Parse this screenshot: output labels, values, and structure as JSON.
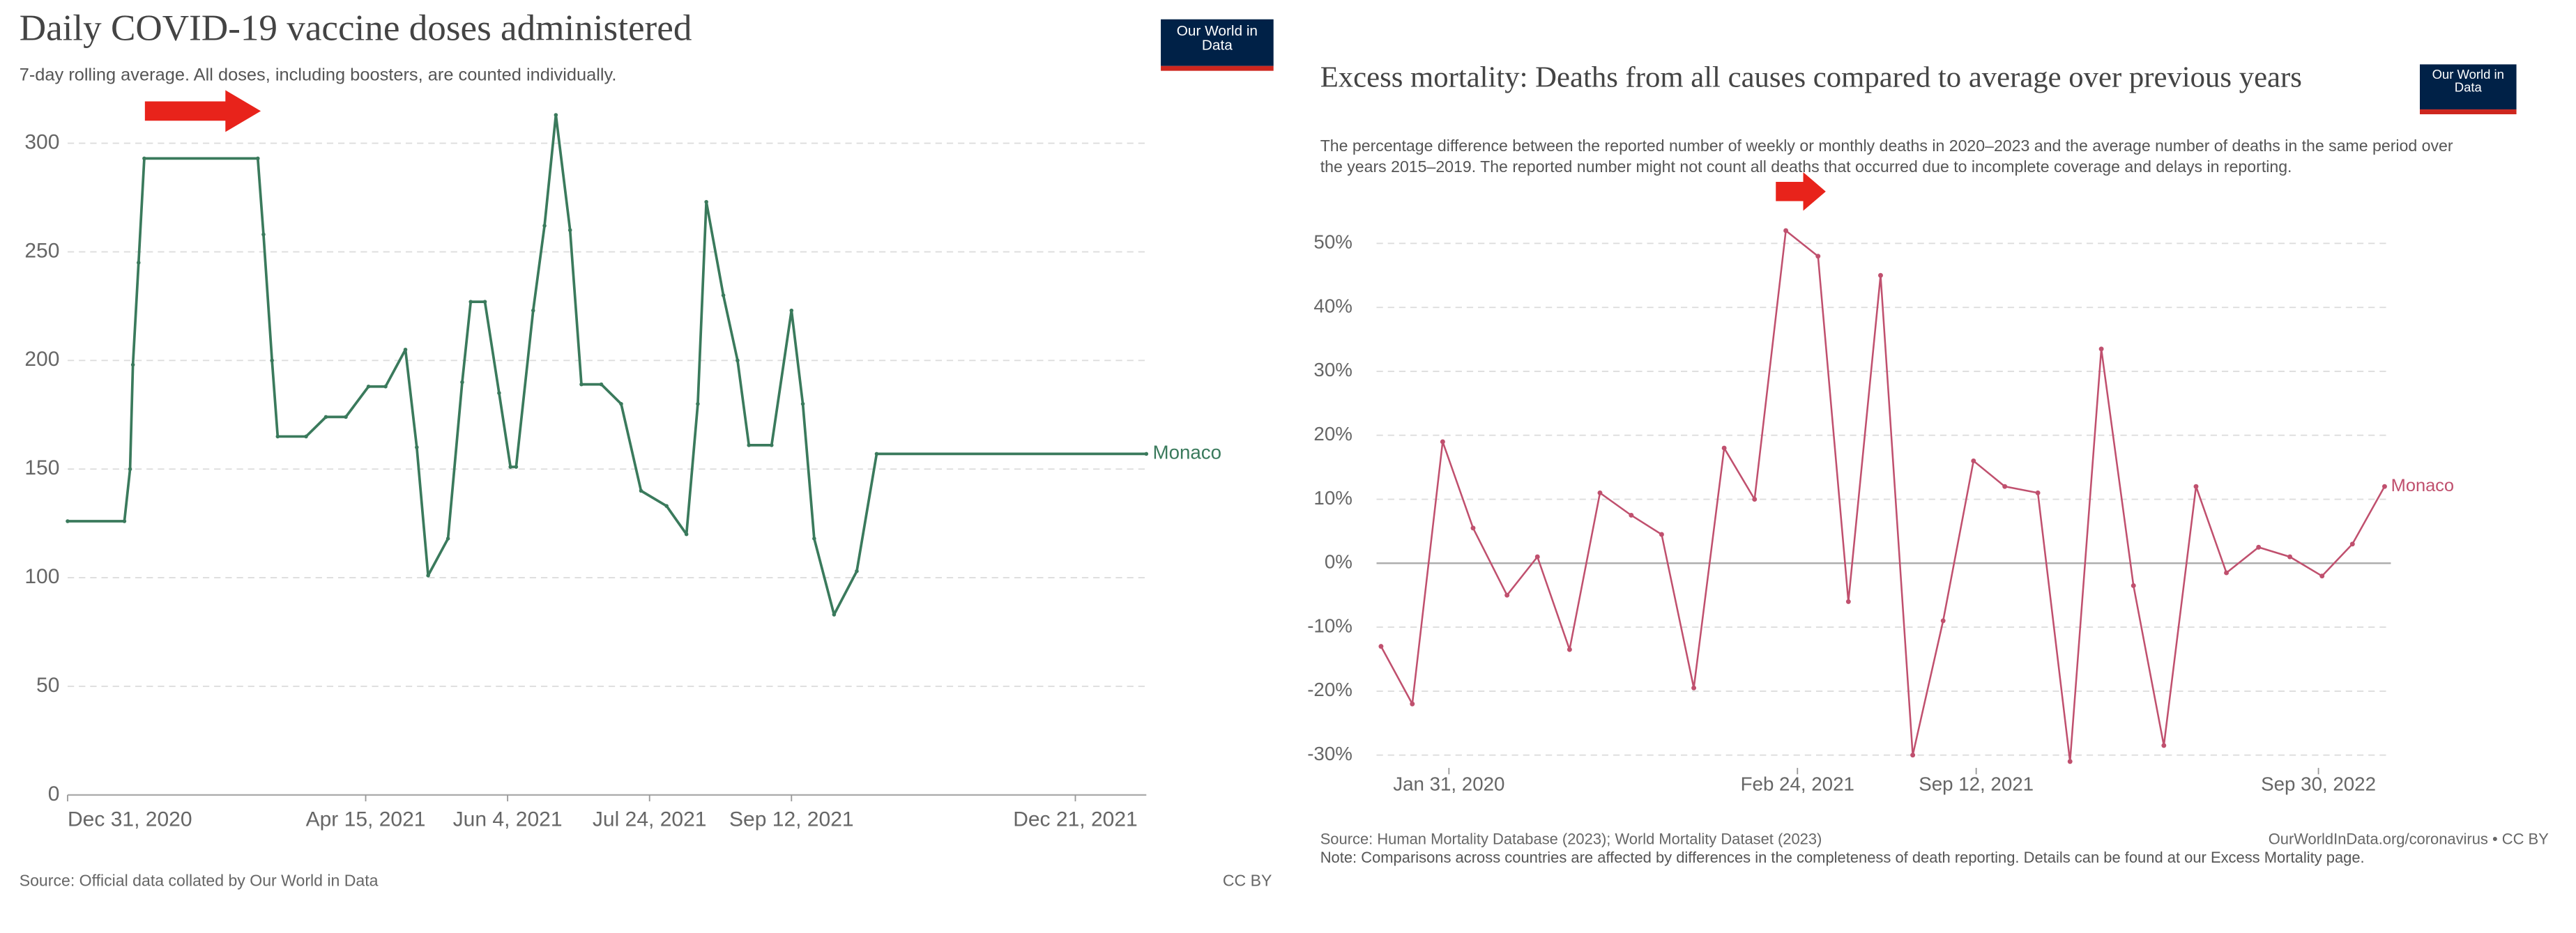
{
  "chart_data": [
    {
      "type": "line",
      "title": "Daily COVID-19 vaccine doses administered",
      "subtitle": "7-day rolling average. All doses, including boosters, are counted individually.",
      "logo": "Our World in Data",
      "source": "Source: Official data collated by Our World in Data",
      "license": "CC BY",
      "x": [
        "2020-12-31",
        "2021-01-20",
        "2021-01-22",
        "2021-01-23",
        "2021-01-25",
        "2021-01-27",
        "2021-03-08",
        "2021-03-10",
        "2021-03-13",
        "2021-03-15",
        "2021-03-25",
        "2021-04-01",
        "2021-04-08",
        "2021-04-16",
        "2021-04-22",
        "2021-04-29",
        "2021-05-03",
        "2021-05-07",
        "2021-05-14",
        "2021-05-19",
        "2021-05-22",
        "2021-05-27",
        "2021-06-01",
        "2021-06-05",
        "2021-06-07",
        "2021-06-13",
        "2021-06-17",
        "2021-06-21",
        "2021-06-26",
        "2021-06-30",
        "2021-07-07",
        "2021-07-14",
        "2021-07-21",
        "2021-07-30",
        "2021-08-06",
        "2021-08-10",
        "2021-08-13",
        "2021-08-19",
        "2021-08-24",
        "2021-08-28",
        "2021-09-05",
        "2021-09-12",
        "2021-09-16",
        "2021-09-20",
        "2021-09-27",
        "2021-10-05",
        "2021-10-12",
        "2022-01-15"
      ],
      "series": [
        {
          "name": "Monaco",
          "color": "#3a7a5c",
          "values": [
            126,
            126,
            150,
            198,
            245,
            293,
            293,
            258,
            200,
            165,
            165,
            174,
            174,
            188,
            188,
            205,
            160,
            101,
            118,
            190,
            227,
            227,
            185,
            151,
            151,
            223,
            262,
            313,
            260,
            189,
            189,
            180,
            140,
            133,
            120,
            180,
            273,
            230,
            200,
            161,
            161,
            223,
            180,
            118,
            83,
            103,
            157,
            157
          ]
        }
      ],
      "xlim": [
        "2020-12-31",
        "2022-01-15"
      ],
      "xticks": [
        {
          "value": "2020-12-31",
          "label": "Dec 31, 2020"
        },
        {
          "value": "2021-04-15",
          "label": "Apr 15, 2021"
        },
        {
          "value": "2021-06-04",
          "label": "Jun 4, 2021"
        },
        {
          "value": "2021-07-24",
          "label": "Jul 24, 2021"
        },
        {
          "value": "2021-09-12",
          "label": "Sep 12, 2021"
        },
        {
          "value": "2021-12-21",
          "label": "Dec 21, 2021"
        }
      ],
      "ylim": [
        0,
        320
      ],
      "yticks": [
        0,
        50,
        100,
        150,
        200,
        250,
        300
      ],
      "grid": true
    },
    {
      "type": "line",
      "title": "Excess mortality: Deaths from all causes compared to average over previous years",
      "subtitle": "The percentage difference between the reported number of weekly or monthly deaths in 2020–2023 and the average number of deaths in the same period over the years 2015–2019. The reported number might not count all deaths that occurred due to incomplete coverage and delays in reporting.",
      "logo": "Our World in Data",
      "source": "Source: Human Mortality Database (2023); World Mortality Dataset (2023)",
      "license": "OurWorldInData.org/coronavirus • CC BY",
      "note": "Note: Comparisons across countries are affected by differences in the completeness of death reporting. Details can be found at our Excess Mortality page.",
      "x": [
        "2019-11-16",
        "2019-12-21",
        "2020-01-24",
        "2020-02-27",
        "2020-04-05",
        "2020-05-09",
        "2020-06-14",
        "2020-07-18",
        "2020-08-22",
        "2020-09-25",
        "2020-10-31",
        "2020-12-04",
        "2021-01-07",
        "2021-02-11",
        "2021-03-19",
        "2021-04-22",
        "2021-05-28",
        "2021-07-03",
        "2021-08-06",
        "2021-09-09",
        "2021-10-14",
        "2021-11-20",
        "2021-12-26",
        "2022-01-30",
        "2022-03-07",
        "2022-04-10",
        "2022-05-16",
        "2022-06-19",
        "2022-07-25",
        "2022-08-29",
        "2022-10-04",
        "2022-11-07",
        "2022-12-13"
      ],
      "series": [
        {
          "name": "Monaco",
          "color": "#c0506e",
          "values": [
            -13,
            -22,
            19,
            5.5,
            -5,
            1,
            -13.5,
            11,
            7.5,
            4.5,
            -19.5,
            18,
            10,
            52,
            48,
            -6,
            45,
            -30,
            -9,
            16,
            12,
            11,
            -31,
            33.5,
            -3.5,
            -28.5,
            12,
            -1.5,
            2.5,
            1,
            -2,
            3,
            12
          ]
        }
      ],
      "xlim": [
        "2019-11-11",
        "2022-12-20"
      ],
      "xticks": [
        {
          "value": "2020-01-31",
          "label": "Jan 31, 2020"
        },
        {
          "value": "2021-02-24",
          "label": "Feb 24, 2021"
        },
        {
          "value": "2021-09-12",
          "label": "Sep 12, 2021"
        },
        {
          "value": "2022-09-30",
          "label": "Sep 30, 2022"
        }
      ],
      "ylim": [
        -32,
        55
      ],
      "yticks": [
        {
          "value": -30,
          "label": "-30%"
        },
        {
          "value": -20,
          "label": "-20%"
        },
        {
          "value": -10,
          "label": "-10%"
        },
        {
          "value": 0,
          "label": "0%"
        },
        {
          "value": 10,
          "label": "10%"
        },
        {
          "value": 20,
          "label": "20%"
        },
        {
          "value": 30,
          "label": "30%"
        },
        {
          "value": 40,
          "label": "40%"
        },
        {
          "value": 50,
          "label": "50%"
        }
      ],
      "grid": true
    }
  ]
}
